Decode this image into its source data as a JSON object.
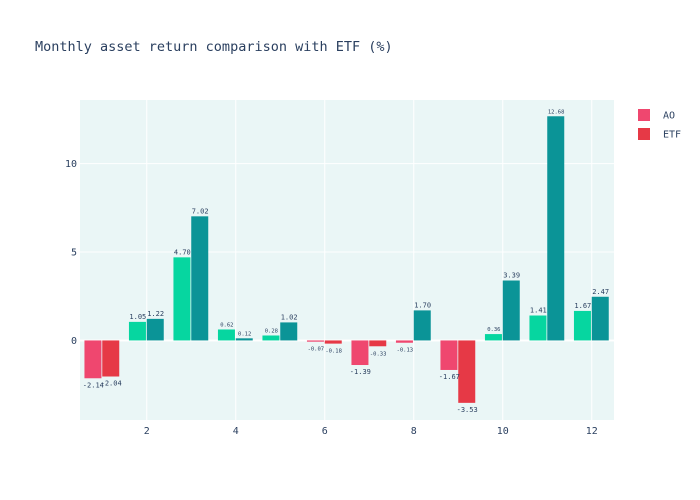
{
  "chart_data": {
    "type": "bar",
    "title": "Monthly asset return comparison with ETF (%)",
    "xlabel": "",
    "ylabel": "",
    "x": [
      1,
      2,
      3,
      4,
      5,
      6,
      7,
      8,
      9,
      10,
      11,
      12
    ],
    "xticks": [
      2,
      4,
      6,
      8,
      10,
      12
    ],
    "yticks": [
      0,
      5,
      10
    ],
    "xlim": [
      0.5,
      12.5
    ],
    "ylim": [
      -4.5,
      13.6
    ],
    "grid": true,
    "legend_position": "top-right",
    "plot_background": "#eaf6f6",
    "series": [
      {
        "name": "AO",
        "legend_color": "#ef476f",
        "positive_color": "#06d6a0",
        "negative_color": "#ef476f",
        "values": [
          -2.14,
          1.05,
          4.7,
          0.62,
          0.28,
          -0.07,
          -1.39,
          -0.13,
          -1.67,
          0.36,
          1.41,
          1.67
        ],
        "labels": [
          "-2.14",
          "1.05",
          "4.70",
          "0.62",
          "0.28",
          "-0.07",
          "-1.39",
          "-0.13",
          "-1.67",
          "0.36",
          "1.41",
          "1.67"
        ]
      },
      {
        "name": "ETF",
        "legend_color": "#e63946",
        "positive_color": "#0b9497",
        "negative_color": "#e63946",
        "values": [
          -2.04,
          1.22,
          7.02,
          0.12,
          1.02,
          -0.18,
          -0.33,
          1.7,
          -3.53,
          3.39,
          12.68,
          2.47
        ],
        "labels": [
          "-2.04",
          "1.22",
          "7.02",
          "0.12",
          "1.02",
          "-0.18",
          "-0.33",
          "1.70",
          "-3.53",
          "3.39",
          "12.68",
          "2.47"
        ]
      }
    ]
  }
}
